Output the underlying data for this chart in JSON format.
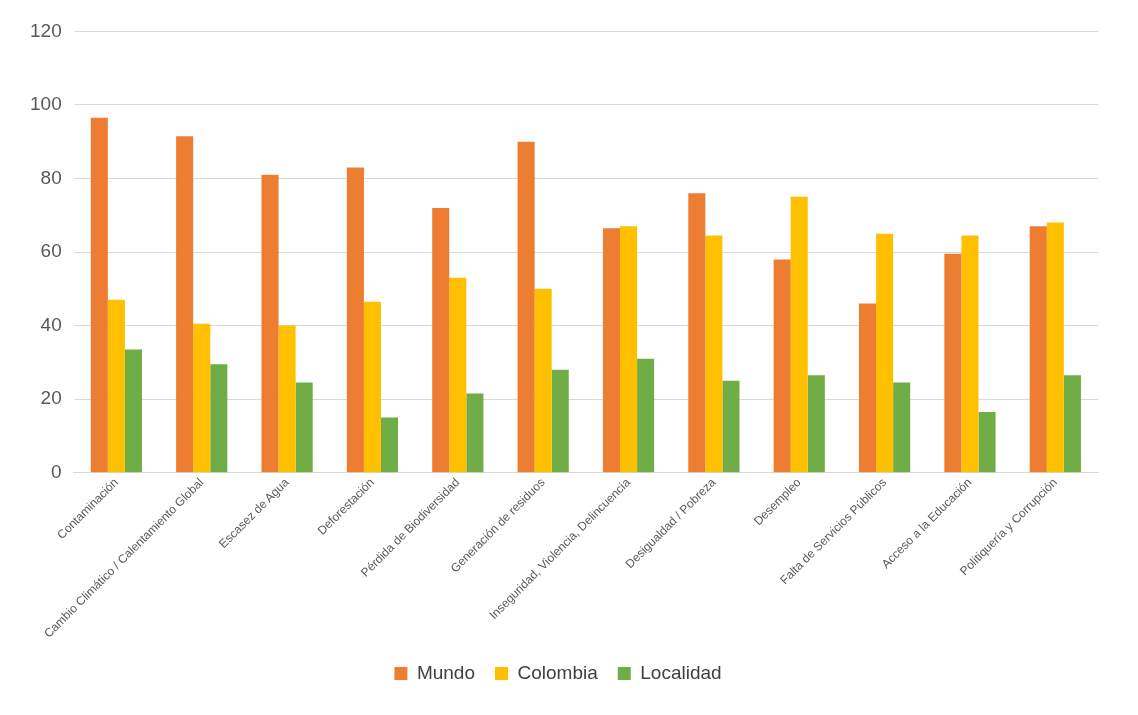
{
  "chart_data": {
    "type": "bar",
    "categories": [
      "Contaminación",
      "Cambio Climático / Calentamiento Global",
      "Escasez de Agua",
      "Deforestación",
      "Pérdida de Biodiversidad",
      "Generación de residuos",
      "Inseguridad, Violencia, Delincuencia",
      "Desigualdad / Pobreza",
      "Desempleo",
      "Falta de Servicios Públicos",
      "Acceso a la Educación",
      "Politiquería y Corrupción"
    ],
    "series": [
      {
        "name": "Mundo",
        "color": "#ed7d31",
        "values": [
          96.5,
          91.5,
          81,
          83,
          72,
          90,
          66.5,
          76,
          58,
          46,
          59.5,
          67
        ]
      },
      {
        "name": "Colombia",
        "color": "#ffc000",
        "values": [
          47,
          40.5,
          40,
          46.5,
          53,
          50,
          67,
          64.5,
          75,
          65,
          64.5,
          68
        ]
      },
      {
        "name": "Localidad",
        "color": "#70ad47",
        "values": [
          33.5,
          29.5,
          24.5,
          15,
          21.5,
          28,
          31,
          25,
          26.5,
          24.5,
          16.5,
          26.5
        ]
      }
    ],
    "ylim": [
      0,
      120
    ],
    "yticks": [
      0,
      20,
      40,
      60,
      80,
      100,
      120
    ],
    "grid": "y",
    "legend": "bottom"
  }
}
